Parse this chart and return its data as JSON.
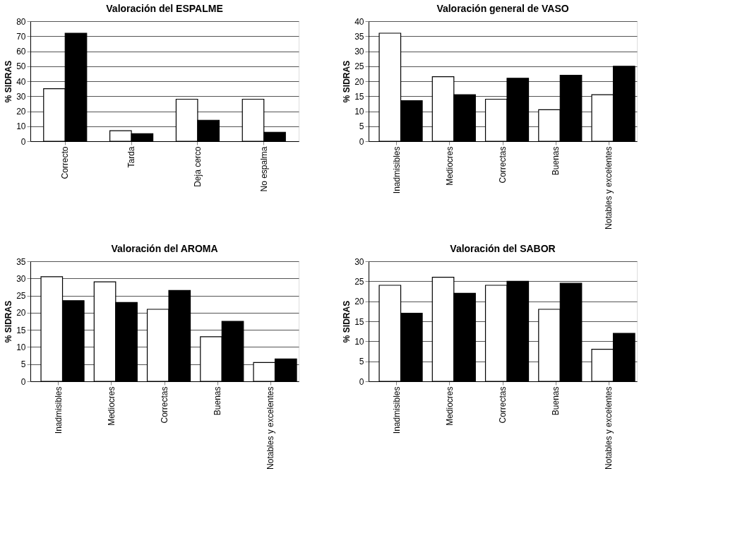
{
  "chart_data": [
    {
      "type": "bar",
      "title": "Valoración del ESPALME",
      "ylabel": "% SIDRAS",
      "categories": [
        "Correcto",
        "Tarda",
        "Deja cerco",
        "No espalma"
      ],
      "series": [
        {
          "color": "#ffffff",
          "values": [
            35,
            7,
            28,
            28
          ]
        },
        {
          "color": "#000000",
          "values": [
            72,
            5,
            14,
            6
          ]
        }
      ],
      "ylim": [
        0,
        80
      ],
      "yticks": [
        0,
        10,
        20,
        30,
        40,
        50,
        60,
        70,
        80
      ],
      "grid": "y",
      "legend": false
    },
    {
      "type": "bar",
      "title": "Valoración general de VASO",
      "ylabel": "% SIDRAS",
      "categories": [
        "Inadmisibles",
        "Mediocres",
        "Correctas",
        "Buenas",
        "Notables y excelentes"
      ],
      "series": [
        {
          "color": "#ffffff",
          "values": [
            36,
            21.5,
            14,
            10.5,
            15.5
          ]
        },
        {
          "color": "#000000",
          "values": [
            13.5,
            15.5,
            21,
            22,
            25
          ]
        }
      ],
      "ylim": [
        0,
        40
      ],
      "yticks": [
        0,
        5,
        10,
        15,
        20,
        25,
        30,
        35,
        40
      ],
      "grid": "y",
      "legend": false
    },
    {
      "type": "bar",
      "title": "Valoración del AROMA",
      "ylabel": "% SIDRAS",
      "categories": [
        "Inadmisibles",
        "Mediocres",
        "Correctas",
        "Buenas",
        "Notables y excelentes"
      ],
      "series": [
        {
          "color": "#ffffff",
          "values": [
            30.5,
            29,
            21,
            13,
            5.5
          ]
        },
        {
          "color": "#000000",
          "values": [
            23.5,
            23,
            26.5,
            17.5,
            6.5
          ]
        }
      ],
      "ylim": [
        0,
        35
      ],
      "yticks": [
        0,
        5,
        10,
        15,
        20,
        25,
        30,
        35
      ],
      "grid": "y",
      "legend": false
    },
    {
      "type": "bar",
      "title": "Valoración del SABOR",
      "ylabel": "% SIDRAS",
      "categories": [
        "Inadmisibles",
        "Mediocres",
        "Correctas",
        "Buenas",
        "Notables y excelentes"
      ],
      "series": [
        {
          "color": "#ffffff",
          "values": [
            24,
            26,
            24,
            18,
            8
          ]
        },
        {
          "color": "#000000",
          "values": [
            17,
            22,
            25,
            24.5,
            12
          ]
        }
      ],
      "ylim": [
        0,
        30
      ],
      "yticks": [
        0,
        5,
        10,
        15,
        20,
        25,
        30
      ],
      "grid": "y",
      "legend": false
    }
  ]
}
